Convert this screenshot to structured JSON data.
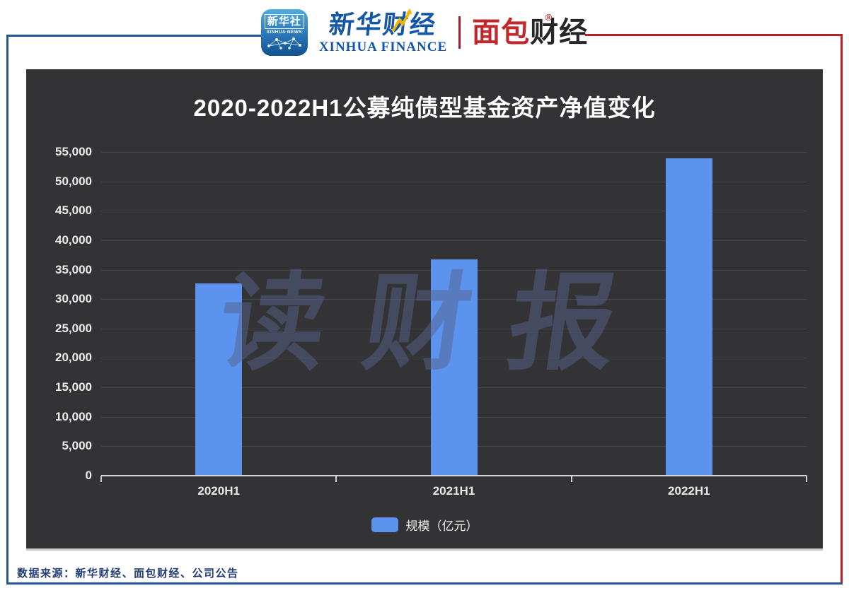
{
  "header": {
    "xinhua_news_icon": {
      "title_cn": "新华社",
      "subtitle_en": "XINHUA NEWS"
    },
    "xinhua_finance": {
      "title_cn": "新华财经",
      "subtitle_en": "XINHUA FINANCE"
    },
    "bread_finance": {
      "title_cn_part1": "面包",
      "title_cn_part2": "财经",
      "registered_mark": "®"
    }
  },
  "chart_data": {
    "type": "bar",
    "title": "2020-2022H1公募纯债型基金资产净值变化",
    "categories": [
      "2020H1",
      "2021H1",
      "2022H1"
    ],
    "series": [
      {
        "name": "规模（亿元）",
        "values": [
          32600,
          36600,
          53800
        ]
      }
    ],
    "ylim": [
      0,
      55000
    ],
    "ytick_step": 5000,
    "grid": true,
    "legend_position": "bottom",
    "watermark": "读财报"
  },
  "footer": {
    "source": "数据来源：新华财经、面包财经、公司公告"
  },
  "colors": {
    "bar": "#5B93EE",
    "panel_background": "#333234",
    "frame_blue": "#24549C",
    "frame_red": "#B9222B",
    "logo_blue": "#1456A8",
    "logo_red": "#C1272D",
    "footer_text": "#233D77",
    "watermark": "#56648C"
  }
}
